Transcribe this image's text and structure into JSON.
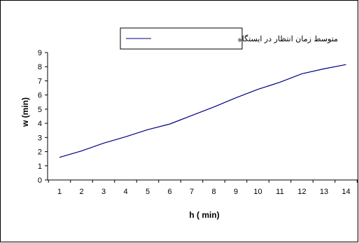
{
  "chart_data": {
    "type": "line",
    "x": [
      1,
      2,
      3,
      4,
      5,
      6,
      7,
      8,
      9,
      10,
      11,
      12,
      13,
      14
    ],
    "series": [
      {
        "name": "متوسط زمان انتظار در ایستگاه",
        "values": [
          1.6,
          2.05,
          2.6,
          3.05,
          3.55,
          3.95,
          4.55,
          5.15,
          5.8,
          6.4,
          6.9,
          7.5,
          7.85,
          8.15
        ],
        "color": "#000080"
      }
    ],
    "xlabel": "h ( min)",
    "ylabel": "w (min)",
    "xticks": [
      "1",
      "2",
      "3",
      "4",
      "5",
      "6",
      "7",
      "8",
      "9",
      "10",
      "11",
      "12",
      "13",
      "14"
    ],
    "yticks": [
      "0",
      "1",
      "2",
      "3",
      "4",
      "5",
      "6",
      "7",
      "8",
      "9"
    ],
    "ylim": [
      0,
      9
    ],
    "grid": false,
    "legend_position": "top-center"
  }
}
